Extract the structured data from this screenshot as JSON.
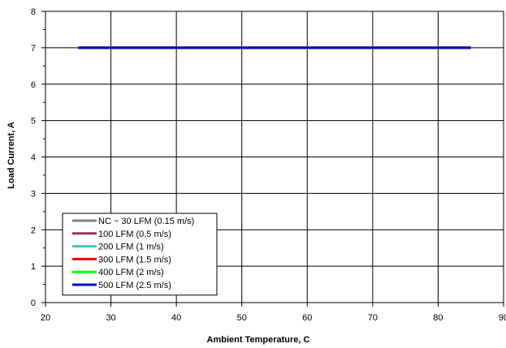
{
  "chart_data": {
    "type": "line",
    "title": "",
    "xlabel": "Ambient Temperature, C",
    "ylabel": "Load Current, A",
    "xlim": [
      20,
      90
    ],
    "ylim": [
      0,
      8
    ],
    "x_ticks": [
      "20",
      "30",
      "40",
      "50",
      "60",
      "70",
      "80",
      "90"
    ],
    "y_ticks": [
      "0",
      "1",
      "2",
      "3",
      "4",
      "5",
      "6",
      "7",
      "8"
    ],
    "grid": true,
    "legend_position": "bottom-left",
    "series": [
      {
        "name": "NC ~ 30 LFM (0.15 m/s)",
        "color": "#808080",
        "x": [
          25,
          85
        ],
        "y": [
          7,
          7
        ]
      },
      {
        "name": "100 LFM (0.5 m/s)",
        "color": "#993366",
        "x": [
          25,
          85
        ],
        "y": [
          7,
          7
        ]
      },
      {
        "name": "200 LFM (1 m/s)",
        "color": "#33CCCC",
        "x": [
          25,
          85
        ],
        "y": [
          7,
          7
        ]
      },
      {
        "name": "300 LFM (1.5 m/s)",
        "color": "#FF0000",
        "x": [
          25,
          85
        ],
        "y": [
          7,
          7
        ]
      },
      {
        "name": "400 LFM (2 m/s)",
        "color": "#00FF00",
        "x": [
          25,
          85
        ],
        "y": [
          7,
          7
        ]
      },
      {
        "name": "500 LFM (2.5 m/s)",
        "color": "#0000CC",
        "x": [
          25,
          85
        ],
        "y": [
          7,
          7
        ]
      }
    ]
  }
}
